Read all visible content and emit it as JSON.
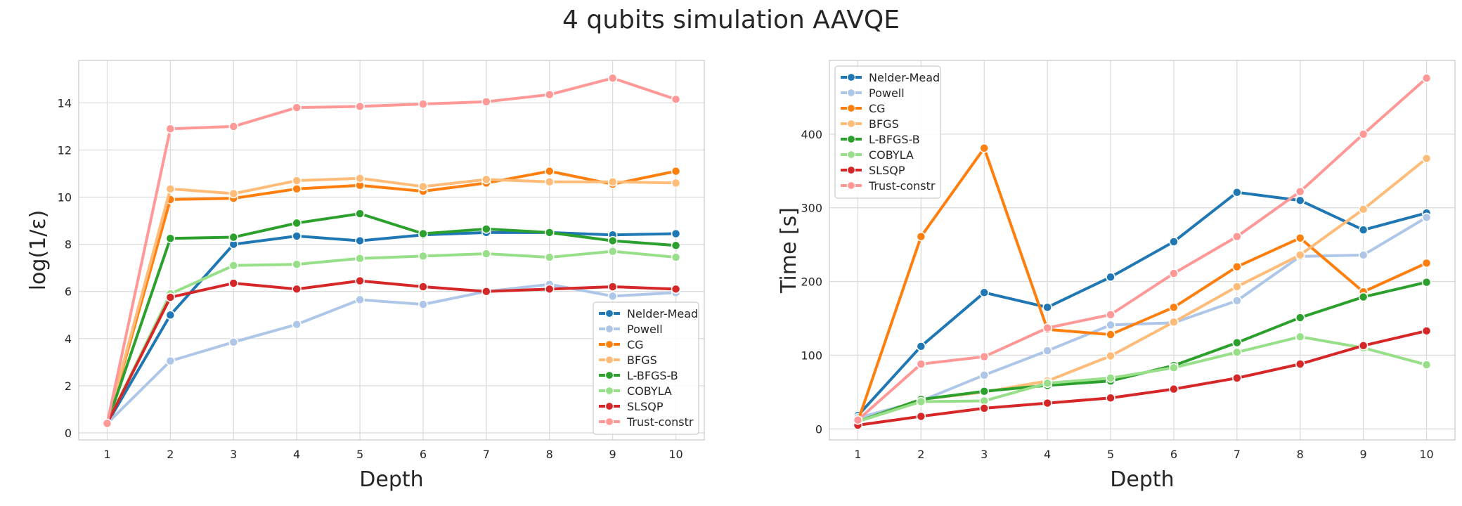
{
  "figure": {
    "title": "4 qubits simulation AAVQE"
  },
  "chart_data": [
    {
      "type": "line",
      "title": "",
      "xlabel": "Depth",
      "ylabel": "log(1/ε)",
      "x": [
        1,
        2,
        3,
        4,
        5,
        6,
        7,
        8,
        9,
        10
      ],
      "xlim": [
        0.55,
        10.45
      ],
      "ylim": [
        -0.3,
        15.8
      ],
      "yticks": [
        0,
        2,
        4,
        6,
        8,
        10,
        12,
        14
      ],
      "grid": true,
      "legend_loc": "lower-right",
      "series": [
        {
          "name": "Nelder-Mead",
          "color": "#1f77b4",
          "values": [
            0.4,
            5.0,
            8.0,
            8.35,
            8.15,
            8.4,
            8.5,
            8.5,
            8.4,
            8.45
          ]
        },
        {
          "name": "Powell",
          "color": "#aec7e8",
          "values": [
            0.4,
            3.05,
            3.85,
            4.6,
            5.65,
            5.45,
            6.0,
            6.3,
            5.8,
            5.95
          ]
        },
        {
          "name": "CG",
          "color": "#ff7f0e",
          "values": [
            0.4,
            9.9,
            9.95,
            10.35,
            10.5,
            10.25,
            10.6,
            11.1,
            10.55,
            11.1
          ]
        },
        {
          "name": "BFGS",
          "color": "#ffbb78",
          "values": [
            0.4,
            10.35,
            10.15,
            10.7,
            10.8,
            10.45,
            10.75,
            10.65,
            10.65,
            10.6
          ]
        },
        {
          "name": "L-BFGS-B",
          "color": "#2ca02c",
          "values": [
            0.4,
            8.25,
            8.3,
            8.9,
            9.3,
            8.45,
            8.65,
            8.5,
            8.15,
            7.95
          ]
        },
        {
          "name": "COBYLA",
          "color": "#98df8a",
          "values": [
            0.4,
            5.9,
            7.1,
            7.15,
            7.4,
            7.5,
            7.6,
            7.45,
            7.7,
            7.45
          ]
        },
        {
          "name": "SLSQP",
          "color": "#d62728",
          "values": [
            0.4,
            5.75,
            6.35,
            6.1,
            6.45,
            6.2,
            6.0,
            6.1,
            6.2,
            6.1
          ]
        },
        {
          "name": "Trust-constr",
          "color": "#ff9896",
          "values": [
            0.4,
            12.9,
            13.0,
            13.8,
            13.85,
            13.95,
            14.05,
            14.35,
            15.05,
            14.15
          ]
        }
      ]
    },
    {
      "type": "line",
      "title": "",
      "xlabel": "Depth",
      "ylabel": "Time [s]",
      "x": [
        1,
        2,
        3,
        4,
        5,
        6,
        7,
        8,
        9,
        10
      ],
      "xlim": [
        0.55,
        10.45
      ],
      "ylim": [
        -15,
        500
      ],
      "yticks": [
        0,
        100,
        200,
        300,
        400
      ],
      "grid": true,
      "legend_loc": "upper-left",
      "series": [
        {
          "name": "Nelder-Mead",
          "color": "#1f77b4",
          "values": [
            18,
            112,
            185,
            165,
            206,
            254,
            321,
            310,
            270,
            293
          ]
        },
        {
          "name": "Powell",
          "color": "#aec7e8",
          "values": [
            15,
            38,
            73,
            106,
            141,
            144,
            174,
            234,
            236,
            287
          ]
        },
        {
          "name": "CG",
          "color": "#ff7f0e",
          "values": [
            10,
            261,
            381,
            135,
            128,
            165,
            220,
            259,
            186,
            225
          ]
        },
        {
          "name": "BFGS",
          "color": "#ffbb78",
          "values": [
            10,
            40,
            50,
            65,
            99,
            145,
            193,
            236,
            298,
            367
          ]
        },
        {
          "name": "L-BFGS-B",
          "color": "#2ca02c",
          "values": [
            10,
            40,
            51,
            59,
            65,
            86,
            117,
            151,
            179,
            199
          ]
        },
        {
          "name": "COBYLA",
          "color": "#98df8a",
          "values": [
            10,
            37,
            38,
            62,
            69,
            83,
            104,
            125,
            110,
            87
          ]
        },
        {
          "name": "SLSQP",
          "color": "#d62728",
          "values": [
            5,
            17,
            28,
            35,
            42,
            54,
            69,
            88,
            113,
            133
          ]
        },
        {
          "name": "Trust-constr",
          "color": "#ff9896",
          "values": [
            12,
            88,
            98,
            137,
            155,
            211,
            261,
            322,
            400,
            476
          ]
        }
      ]
    }
  ]
}
